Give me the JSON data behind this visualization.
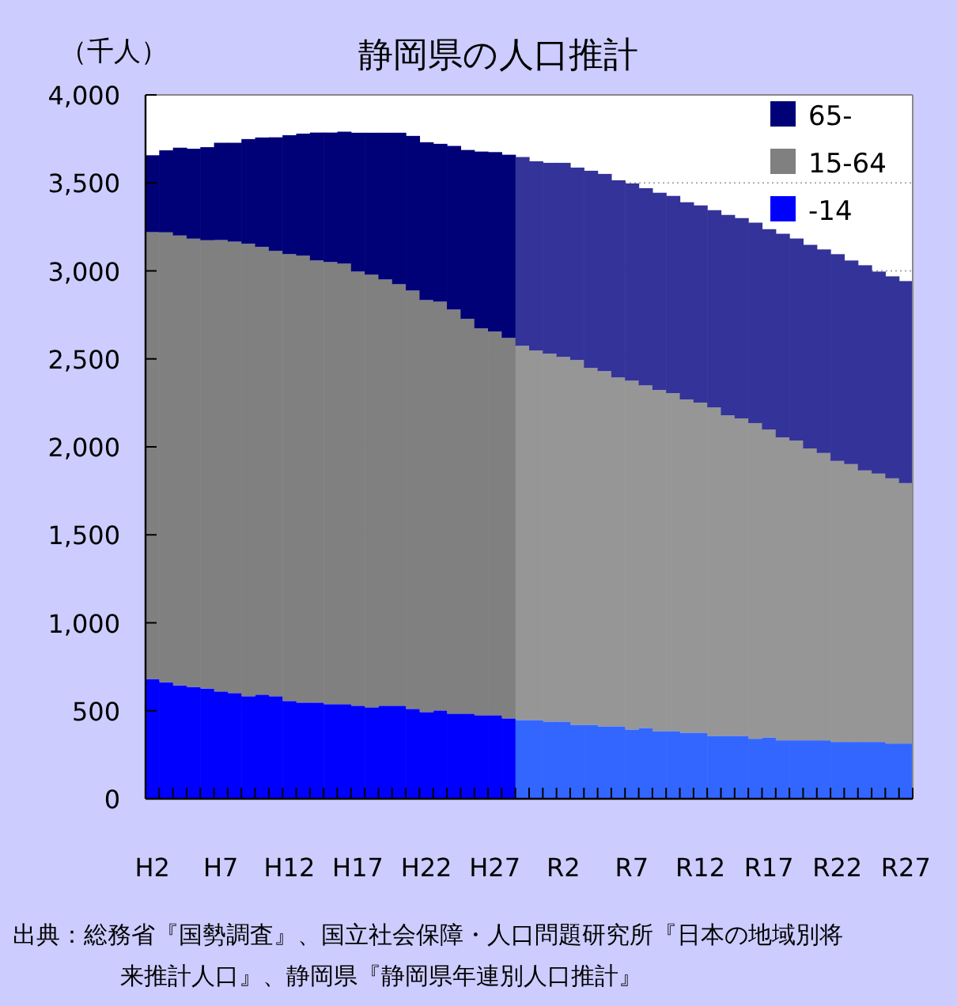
{
  "chart_data": {
    "type": "bar",
    "stacked": true,
    "title": "静岡県の人口推計",
    "ylabel": "（千人）",
    "annotations": [
      "出典：総務省『国勢調査』、国立社会保障・人口問題研究所『日本の地域別将来推計人口』、静岡県『静岡県年連別人口推計』"
    ],
    "categories": [
      "H2",
      null,
      null,
      null,
      null,
      "H7",
      null,
      null,
      null,
      null,
      "H12",
      null,
      null,
      null,
      null,
      "H17",
      null,
      null,
      null,
      null,
      "H22",
      null,
      null,
      null,
      null,
      "H27",
      null,
      null,
      null,
      null,
      "R2",
      null,
      null,
      null,
      null,
      "R7",
      null,
      null,
      null,
      null,
      "R12",
      null,
      null,
      null,
      null,
      "R17",
      null,
      null,
      null,
      null,
      "R22",
      null,
      null,
      null,
      null,
      "R27"
    ],
    "ylim": [
      0,
      4000
    ],
    "yticks": [
      0,
      500,
      {
        "value": 1000,
        "label": "1,000"
      },
      {
        "value": 1500,
        "label": "1,500"
      },
      {
        "value": 2000,
        "label": "2,000"
      },
      {
        "value": 2500,
        "label": "2,500"
      },
      {
        "value": 3000,
        "label": "3,000"
      },
      {
        "value": 3500,
        "label": "3,500"
      },
      {
        "value": 4000,
        "label": "4,000"
      }
    ],
    "grid": "y",
    "legend": "top right",
    "series": [
      {
        "name": "-14",
        "color": "#0000ff",
        "values": [
          681,
          663,
          645,
          636,
          627,
          610,
          601,
          583,
          592,
          583,
          556,
          547,
          547,
          538,
          538,
          529,
          520,
          529,
          529,
          511,
          493,
          502,
          484,
          484,
          475,
          475,
          457,
          448,
          448,
          439,
          439,
          421,
          421,
          412,
          412,
          394,
          403,
          385,
          385,
          376,
          376,
          358,
          358,
          358,
          341,
          349,
          332,
          332,
          332,
          332,
          323,
          323,
          323,
          323,
          314,
          314
        ],
        "colors": [
          "#0000ff",
          "#0000ff",
          "#0000ff",
          "#0000ff",
          "#0000ff",
          "#0000ff",
          "#0000ff",
          "#0000ff",
          "#0000ff",
          "#0000ff",
          "#0000ff",
          "#0000ff",
          "#0000ff",
          "#0000ff",
          "#0000ff",
          "#0000ff",
          "#0000ff",
          "#0000ff",
          "#0000ff",
          "#0000ff",
          "#0000ff",
          "#0000ff",
          "#0000ff",
          "#0000ff",
          "#0000ff",
          "#0000ff",
          "#0000ff",
          "#3366ff",
          "#3366ff",
          "#3366ff",
          "#3366ff",
          "#3366ff",
          "#3366ff",
          "#3366ff",
          "#3366ff",
          "#3366ff",
          "#3366ff",
          "#3366ff",
          "#3366ff",
          "#3366ff",
          "#3366ff",
          "#3366ff",
          "#3366ff",
          "#3366ff",
          "#3366ff",
          "#3366ff",
          "#3366ff",
          "#3366ff",
          "#3366ff",
          "#3366ff",
          "#3366ff",
          "#3366ff",
          "#3366ff",
          "#3366ff",
          "#3366ff",
          "#3366ff"
        ]
      },
      {
        "name": "15-64",
        "color": "#808080",
        "values": [
          2539,
          2556,
          2556,
          2547,
          2547,
          2565,
          2565,
          2571,
          2544,
          2530,
          2539,
          2539,
          2512,
          2512,
          2503,
          2467,
          2458,
          2422,
          2395,
          2377,
          2341,
          2323,
          2296,
          2243,
          2198,
          2180,
          2162,
          2126,
          2099,
          2090,
          2072,
          2072,
          2027,
          2018,
          1982,
          1982,
          1946,
          1938,
          1920,
          1893,
          1875,
          1866,
          1821,
          1803,
          1794,
          1749,
          1722,
          1704,
          1659,
          1633,
          1597,
          1579,
          1543,
          1525,
          1507,
          1480
        ],
        "colors": [
          "#808080",
          "#808080",
          "#808080",
          "#808080",
          "#808080",
          "#808080",
          "#808080",
          "#808080",
          "#808080",
          "#808080",
          "#808080",
          "#808080",
          "#808080",
          "#808080",
          "#808080",
          "#808080",
          "#808080",
          "#808080",
          "#808080",
          "#808080",
          "#808080",
          "#808080",
          "#808080",
          "#808080",
          "#808080",
          "#808080",
          "#808080",
          "#969696",
          "#969696",
          "#969696",
          "#969696",
          "#969696",
          "#969696",
          "#969696",
          "#969696",
          "#969696",
          "#969696",
          "#969696",
          "#969696",
          "#969696",
          "#969696",
          "#969696",
          "#969696",
          "#969696",
          "#969696",
          "#969696",
          "#969696",
          "#969696",
          "#969696",
          "#969696",
          "#969696",
          "#969696",
          "#969696",
          "#969696",
          "#969696",
          "#969696"
        ]
      },
      {
        "name": "65-",
        "color": "#000077",
        "values": [
          437,
          466,
          499,
          511,
          529,
          553,
          562,
          595,
          622,
          646,
          676,
          694,
          727,
          736,
          750,
          789,
          807,
          834,
          861,
          879,
          897,
          897,
          930,
          960,
          1005,
          1020,
          1041,
          1073,
          1076,
          1085,
          1103,
          1094,
          1121,
          1121,
          1121,
          1121,
          1121,
          1121,
          1121,
          1121,
          1121,
          1121,
          1139,
          1139,
          1139,
          1139,
          1157,
          1148,
          1157,
          1157,
          1175,
          1157,
          1166,
          1148,
          1148,
          1148
        ],
        "colors": [
          "#000077",
          "#000077",
          "#000077",
          "#000077",
          "#000077",
          "#000077",
          "#000077",
          "#000077",
          "#000077",
          "#000077",
          "#000077",
          "#000077",
          "#000077",
          "#000077",
          "#000077",
          "#000077",
          "#000077",
          "#000077",
          "#000077",
          "#000077",
          "#000077",
          "#000077",
          "#000077",
          "#000077",
          "#000077",
          "#000077",
          "#000077",
          "#333399",
          "#333399",
          "#333399",
          "#333399",
          "#333399",
          "#333399",
          "#333399",
          "#333399",
          "#333399",
          "#333399",
          "#333399",
          "#333399",
          "#333399",
          "#333399",
          "#333399",
          "#333399",
          "#333399",
          "#333399",
          "#333399",
          "#333399",
          "#333399",
          "#333399",
          "#333399",
          "#333399",
          "#333399",
          "#333399",
          "#333399",
          "#333399",
          "#333399"
        ]
      }
    ]
  }
}
